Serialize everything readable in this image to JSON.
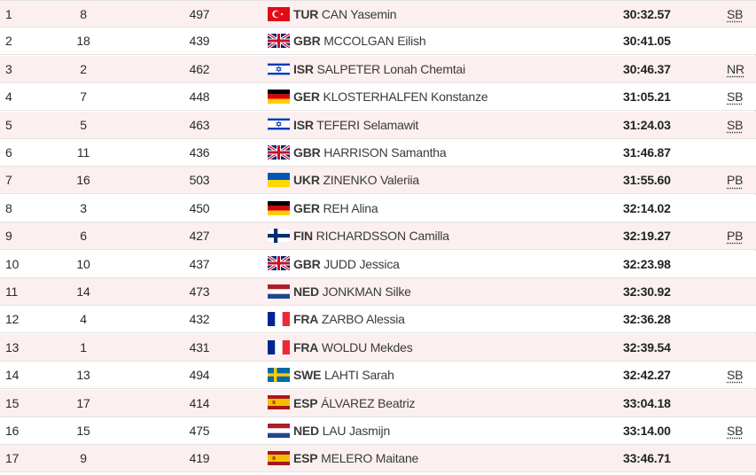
{
  "rows": [
    {
      "rank": "1",
      "order": "8",
      "bib": "497",
      "noc": "TUR",
      "name": "CAN Yasemin",
      "mark": "30:32.57",
      "record": "SB",
      "flag": "tur"
    },
    {
      "rank": "2",
      "order": "18",
      "bib": "439",
      "noc": "GBR",
      "name": "MCCOLGAN Eilish",
      "mark": "30:41.05",
      "record": "",
      "flag": "gbr"
    },
    {
      "rank": "3",
      "order": "2",
      "bib": "462",
      "noc": "ISR",
      "name": "SALPETER Lonah Chemtai",
      "mark": "30:46.37",
      "record": "NR",
      "flag": "isr"
    },
    {
      "rank": "4",
      "order": "7",
      "bib": "448",
      "noc": "GER",
      "name": "KLOSTERHALFEN Konstanze",
      "mark": "31:05.21",
      "record": "SB",
      "flag": "ger"
    },
    {
      "rank": "5",
      "order": "5",
      "bib": "463",
      "noc": "ISR",
      "name": "TEFERI Selamawit",
      "mark": "31:24.03",
      "record": "SB",
      "flag": "isr"
    },
    {
      "rank": "6",
      "order": "11",
      "bib": "436",
      "noc": "GBR",
      "name": "HARRISON Samantha",
      "mark": "31:46.87",
      "record": "",
      "flag": "gbr"
    },
    {
      "rank": "7",
      "order": "16",
      "bib": "503",
      "noc": "UKR",
      "name": "ZINENKO Valeriia",
      "mark": "31:55.60",
      "record": "PB",
      "flag": "ukr"
    },
    {
      "rank": "8",
      "order": "3",
      "bib": "450",
      "noc": "GER",
      "name": "REH Alina",
      "mark": "32:14.02",
      "record": "",
      "flag": "ger"
    },
    {
      "rank": "9",
      "order": "6",
      "bib": "427",
      "noc": "FIN",
      "name": "RICHARDSSON Camilla",
      "mark": "32:19.27",
      "record": "PB",
      "flag": "fin"
    },
    {
      "rank": "10",
      "order": "10",
      "bib": "437",
      "noc": "GBR",
      "name": "JUDD Jessica",
      "mark": "32:23.98",
      "record": "",
      "flag": "gbr"
    },
    {
      "rank": "11",
      "order": "14",
      "bib": "473",
      "noc": "NED",
      "name": "JONKMAN Silke",
      "mark": "32:30.92",
      "record": "",
      "flag": "ned"
    },
    {
      "rank": "12",
      "order": "4",
      "bib": "432",
      "noc": "FRA",
      "name": "ZARBO Alessia",
      "mark": "32:36.28",
      "record": "",
      "flag": "fra"
    },
    {
      "rank": "13",
      "order": "1",
      "bib": "431",
      "noc": "FRA",
      "name": "WOLDU Mekdes",
      "mark": "32:39.54",
      "record": "",
      "flag": "fra"
    },
    {
      "rank": "14",
      "order": "13",
      "bib": "494",
      "noc": "SWE",
      "name": "LAHTI Sarah",
      "mark": "32:42.27",
      "record": "SB",
      "flag": "swe"
    },
    {
      "rank": "15",
      "order": "17",
      "bib": "414",
      "noc": "ESP",
      "name": "ÁLVAREZ Beatriz",
      "mark": "33:04.18",
      "record": "",
      "flag": "esp"
    },
    {
      "rank": "16",
      "order": "15",
      "bib": "475",
      "noc": "NED",
      "name": "LAU Jasmijn",
      "mark": "33:14.00",
      "record": "SB",
      "flag": "ned"
    },
    {
      "rank": "17",
      "order": "9",
      "bib": "419",
      "noc": "ESP",
      "name": "MELERO Maitane",
      "mark": "33:46.71",
      "record": "",
      "flag": "esp"
    }
  ],
  "colors": {
    "row_alt": "#fbefef",
    "row_base": "#ffffff",
    "divider": "#e3e3e3"
  }
}
